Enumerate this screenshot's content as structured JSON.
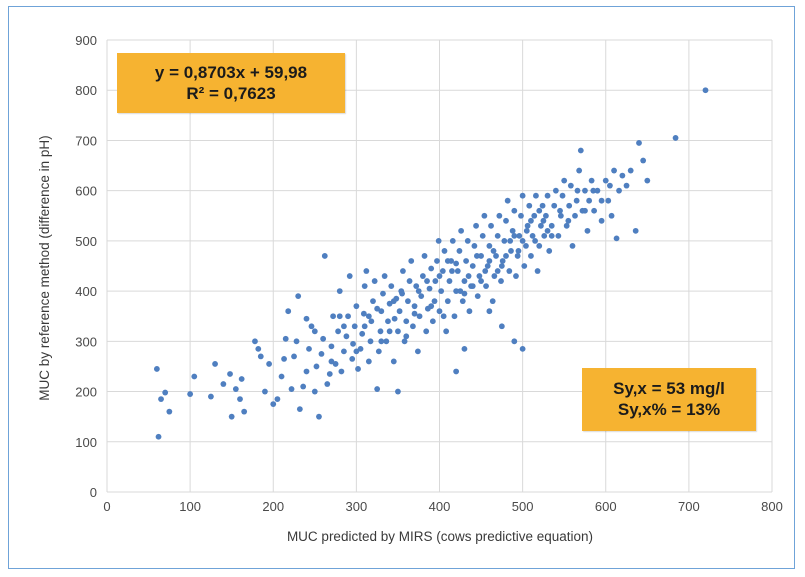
{
  "chart_data": {
    "type": "scatter",
    "xlabel": "MUC predicted by MIRS (cows predictive equation)",
    "ylabel": "MUC by reference method (difference in pH)",
    "xlim": [
      0,
      800
    ],
    "ylim": [
      0,
      900
    ],
    "xticks": [
      "0",
      "100",
      "200",
      "300",
      "400",
      "500",
      "600",
      "700",
      "800"
    ],
    "yticks": [
      "0",
      "100",
      "200",
      "300",
      "400",
      "500",
      "600",
      "700",
      "800",
      "900"
    ],
    "grid": true,
    "annotations": {
      "equation": "y = 0,8703x + 59,98",
      "r2": "R² = 0,7623",
      "syx": "Sy,x = 53 mg/l",
      "syx_pct": "Sy,x% = 13%"
    },
    "colors": {
      "points": "#4f7fc0",
      "grid": "#d9d9d9",
      "box": "#f6b331"
    },
    "points": [
      [
        60,
        245
      ],
      [
        62,
        110
      ],
      [
        65,
        185
      ],
      [
        70,
        198
      ],
      [
        75,
        160
      ],
      [
        100,
        195
      ],
      [
        105,
        230
      ],
      [
        125,
        190
      ],
      [
        130,
        255
      ],
      [
        140,
        215
      ],
      [
        148,
        235
      ],
      [
        150,
        150
      ],
      [
        155,
        205
      ],
      [
        160,
        185
      ],
      [
        162,
        225
      ],
      [
        165,
        160
      ],
      [
        178,
        300
      ],
      [
        182,
        285
      ],
      [
        185,
        270
      ],
      [
        190,
        200
      ],
      [
        195,
        255
      ],
      [
        200,
        175
      ],
      [
        205,
        185
      ],
      [
        210,
        230
      ],
      [
        213,
        265
      ],
      [
        215,
        305
      ],
      [
        218,
        360
      ],
      [
        222,
        205
      ],
      [
        225,
        270
      ],
      [
        228,
        300
      ],
      [
        230,
        390
      ],
      [
        232,
        165
      ],
      [
        236,
        210
      ],
      [
        240,
        240
      ],
      [
        243,
        285
      ],
      [
        246,
        330
      ],
      [
        250,
        200
      ],
      [
        252,
        250
      ],
      [
        255,
        150
      ],
      [
        258,
        275
      ],
      [
        260,
        305
      ],
      [
        262,
        470
      ],
      [
        265,
        215
      ],
      [
        268,
        235
      ],
      [
        270,
        290
      ],
      [
        272,
        350
      ],
      [
        275,
        255
      ],
      [
        278,
        320
      ],
      [
        280,
        400
      ],
      [
        282,
        240
      ],
      [
        285,
        280
      ],
      [
        288,
        310
      ],
      [
        290,
        350
      ],
      [
        292,
        430
      ],
      [
        295,
        265
      ],
      [
        296,
        295
      ],
      [
        298,
        330
      ],
      [
        300,
        370
      ],
      [
        302,
        245
      ],
      [
        305,
        285
      ],
      [
        307,
        315
      ],
      [
        309,
        355
      ],
      [
        310,
        410
      ],
      [
        312,
        440
      ],
      [
        315,
        260
      ],
      [
        317,
        300
      ],
      [
        318,
        340
      ],
      [
        320,
        380
      ],
      [
        322,
        420
      ],
      [
        325,
        205
      ],
      [
        327,
        280
      ],
      [
        329,
        320
      ],
      [
        330,
        360
      ],
      [
        332,
        395
      ],
      [
        334,
        430
      ],
      [
        336,
        300
      ],
      [
        338,
        340
      ],
      [
        340,
        375
      ],
      [
        342,
        410
      ],
      [
        345,
        260
      ],
      [
        346,
        345
      ],
      [
        348,
        385
      ],
      [
        350,
        320
      ],
      [
        352,
        360
      ],
      [
        354,
        400
      ],
      [
        356,
        440
      ],
      [
        358,
        300
      ],
      [
        360,
        340
      ],
      [
        362,
        380
      ],
      [
        364,
        420
      ],
      [
        366,
        460
      ],
      [
        368,
        330
      ],
      [
        370,
        370
      ],
      [
        372,
        410
      ],
      [
        374,
        280
      ],
      [
        376,
        350
      ],
      [
        378,
        390
      ],
      [
        380,
        430
      ],
      [
        382,
        470
      ],
      [
        384,
        320
      ],
      [
        386,
        365
      ],
      [
        388,
        405
      ],
      [
        390,
        445
      ],
      [
        392,
        340
      ],
      [
        394,
        380
      ],
      [
        395,
        420
      ],
      [
        397,
        460
      ],
      [
        399,
        500
      ],
      [
        400,
        360
      ],
      [
        402,
        400
      ],
      [
        404,
        440
      ],
      [
        406,
        480
      ],
      [
        408,
        320
      ],
      [
        410,
        380
      ],
      [
        412,
        420
      ],
      [
        414,
        460
      ],
      [
        416,
        500
      ],
      [
        418,
        350
      ],
      [
        420,
        400
      ],
      [
        422,
        440
      ],
      [
        424,
        480
      ],
      [
        426,
        520
      ],
      [
        428,
        380
      ],
      [
        430,
        420
      ],
      [
        432,
        460
      ],
      [
        434,
        500
      ],
      [
        436,
        360
      ],
      [
        438,
        410
      ],
      [
        440,
        450
      ],
      [
        442,
        490
      ],
      [
        444,
        530
      ],
      [
        446,
        390
      ],
      [
        448,
        430
      ],
      [
        450,
        470
      ],
      [
        452,
        510
      ],
      [
        454,
        550
      ],
      [
        456,
        410
      ],
      [
        458,
        450
      ],
      [
        460,
        490
      ],
      [
        462,
        530
      ],
      [
        464,
        380
      ],
      [
        466,
        430
      ],
      [
        468,
        470
      ],
      [
        470,
        510
      ],
      [
        472,
        550
      ],
      [
        474,
        420
      ],
      [
        476,
        460
      ],
      [
        478,
        500
      ],
      [
        480,
        540
      ],
      [
        482,
        580
      ],
      [
        484,
        440
      ],
      [
        486,
        480
      ],
      [
        488,
        520
      ],
      [
        490,
        560
      ],
      [
        492,
        430
      ],
      [
        494,
        470
      ],
      [
        496,
        510
      ],
      [
        498,
        550
      ],
      [
        500,
        590
      ],
      [
        502,
        450
      ],
      [
        504,
        490
      ],
      [
        506,
        530
      ],
      [
        508,
        570
      ],
      [
        510,
        470
      ],
      [
        512,
        510
      ],
      [
        514,
        550
      ],
      [
        516,
        590
      ],
      [
        518,
        440
      ],
      [
        520,
        490
      ],
      [
        522,
        530
      ],
      [
        524,
        570
      ],
      [
        526,
        510
      ],
      [
        528,
        550
      ],
      [
        530,
        590
      ],
      [
        532,
        480
      ],
      [
        535,
        530
      ],
      [
        538,
        570
      ],
      [
        540,
        600
      ],
      [
        543,
        510
      ],
      [
        546,
        550
      ],
      [
        548,
        590
      ],
      [
        550,
        620
      ],
      [
        553,
        530
      ],
      [
        556,
        570
      ],
      [
        558,
        610
      ],
      [
        560,
        490
      ],
      [
        563,
        550
      ],
      [
        566,
        600
      ],
      [
        568,
        640
      ],
      [
        570,
        680
      ],
      [
        572,
        560
      ],
      [
        575,
        600
      ],
      [
        578,
        520
      ],
      [
        580,
        580
      ],
      [
        583,
        620
      ],
      [
        586,
        560
      ],
      [
        590,
        600
      ],
      [
        595,
        540
      ],
      [
        600,
        620
      ],
      [
        603,
        580
      ],
      [
        607,
        550
      ],
      [
        610,
        640
      ],
      [
        613,
        505
      ],
      [
        616,
        600
      ],
      [
        620,
        630
      ],
      [
        625,
        610
      ],
      [
        630,
        640
      ],
      [
        636,
        520
      ],
      [
        640,
        695
      ],
      [
        645,
        660
      ],
      [
        650,
        620
      ],
      [
        684,
        705
      ],
      [
        720,
        800
      ],
      [
        270,
        260
      ],
      [
        285,
        330
      ],
      [
        300,
        280
      ],
      [
        315,
        350
      ],
      [
        330,
        300
      ],
      [
        345,
        380
      ],
      [
        360,
        310
      ],
      [
        375,
        400
      ],
      [
        390,
        370
      ],
      [
        405,
        350
      ],
      [
        415,
        440
      ],
      [
        425,
        400
      ],
      [
        435,
        430
      ],
      [
        445,
        470
      ],
      [
        455,
        440
      ],
      [
        465,
        480
      ],
      [
        475,
        450
      ],
      [
        485,
        500
      ],
      [
        495,
        480
      ],
      [
        505,
        520
      ],
      [
        515,
        500
      ],
      [
        525,
        540
      ],
      [
        535,
        510
      ],
      [
        545,
        560
      ],
      [
        555,
        540
      ],
      [
        565,
        580
      ],
      [
        575,
        560
      ],
      [
        585,
        600
      ],
      [
        595,
        580
      ],
      [
        605,
        610
      ],
      [
        310,
        330
      ],
      [
        325,
        365
      ],
      [
        340,
        320
      ],
      [
        355,
        395
      ],
      [
        370,
        355
      ],
      [
        385,
        420
      ],
      [
        400,
        430
      ],
      [
        410,
        460
      ],
      [
        420,
        455
      ],
      [
        430,
        395
      ],
      [
        440,
        410
      ],
      [
        450,
        420
      ],
      [
        460,
        460
      ],
      [
        470,
        440
      ],
      [
        480,
        470
      ],
      [
        490,
        510
      ],
      [
        500,
        500
      ],
      [
        510,
        540
      ],
      [
        520,
        560
      ],
      [
        530,
        520
      ],
      [
        350,
        200
      ],
      [
        420,
        240
      ],
      [
        430,
        285
      ],
      [
        460,
        360
      ],
      [
        475,
        330
      ],
      [
        490,
        300
      ],
      [
        500,
        285
      ],
      [
        250,
        320
      ],
      [
        240,
        345
      ],
      [
        280,
        350
      ]
    ]
  }
}
